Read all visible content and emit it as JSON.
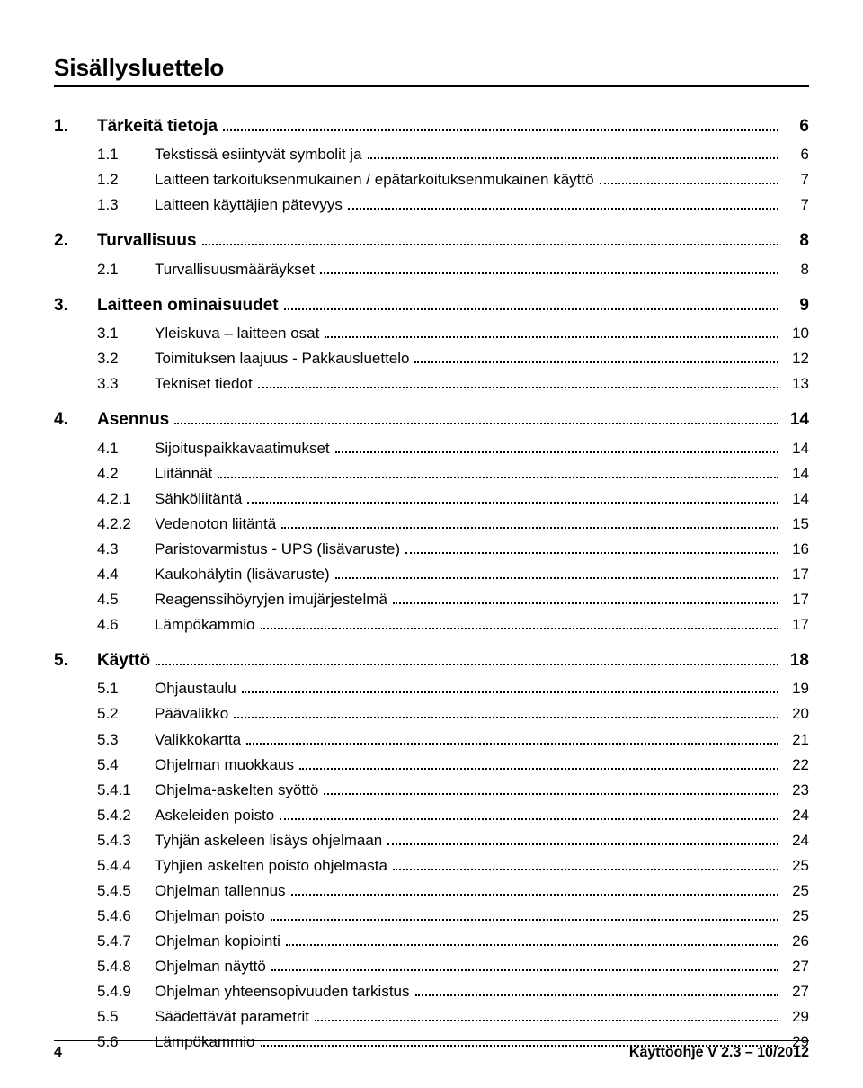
{
  "title": "Sisällysluettelo",
  "footer": {
    "page_number": "4",
    "doc_version": "Käyttöohje V 2.3 – 10/2012"
  },
  "colors": {
    "text": "#000000",
    "background": "#ffffff",
    "rule": "#000000",
    "leader": "#000000"
  },
  "typography": {
    "title_fontsize_pt": 20,
    "section_fontsize_pt": 14,
    "entry_fontsize_pt": 13,
    "footer_fontsize_pt": 12,
    "font_family": "Arial"
  },
  "toc": [
    {
      "num": "1.",
      "title": "Tärkeitä tietoja",
      "page": "6",
      "children": [
        {
          "num": "1.1",
          "title": "Tekstissä esiintyvät symbolit ja",
          "page": "6"
        },
        {
          "num": "1.2",
          "title": "Laitteen tarkoituksenmukainen / epätarkoituksenmukainen käyttö",
          "page": "7"
        },
        {
          "num": "1.3",
          "title": "Laitteen käyttäjien pätevyys",
          "page": "7"
        }
      ]
    },
    {
      "num": "2.",
      "title": "Turvallisuus",
      "page": "8",
      "children": [
        {
          "num": "2.1",
          "title": "Turvallisuusmääräykset",
          "page": "8"
        }
      ]
    },
    {
      "num": "3.",
      "title": "Laitteen ominaisuudet",
      "page": "9",
      "children": [
        {
          "num": "3.1",
          "title": "Yleiskuva – laitteen osat",
          "page": "10"
        },
        {
          "num": "3.2",
          "title": "Toimituksen laajuus - Pakkausluettelo",
          "page": "12"
        },
        {
          "num": "3.3",
          "title": "Tekniset tiedot",
          "page": "13"
        }
      ]
    },
    {
      "num": "4.",
      "title": "Asennus",
      "page": "14",
      "children": [
        {
          "num": "4.1",
          "title": "Sijoituspaikkavaatimukset",
          "page": "14"
        },
        {
          "num": "4.2",
          "title": "Liitännät",
          "page": "14",
          "children": [
            {
              "num": "4.2.1",
              "title": "Sähköliitäntä",
              "page": "14"
            },
            {
              "num": "4.2.2",
              "title": "Vedenoton liitäntä",
              "page": "15"
            }
          ]
        },
        {
          "num": "4.3",
          "title": "Paristovarmistus - UPS (lisävaruste)",
          "page": "16"
        },
        {
          "num": "4.4",
          "title": "Kaukohälytin (lisävaruste)",
          "page": "17"
        },
        {
          "num": "4.5",
          "title": "Reagenssihöyryjen imujärjestelmä",
          "page": "17"
        },
        {
          "num": "4.6",
          "title": "Lämpökammio",
          "page": "17"
        }
      ]
    },
    {
      "num": "5.",
      "title": "Käyttö",
      "page": "18",
      "children": [
        {
          "num": "5.1",
          "title": "Ohjaustaulu",
          "page": "19"
        },
        {
          "num": "5.2",
          "title": "Päävalikko",
          "page": "20"
        },
        {
          "num": "5.3",
          "title": "Valikkokartta",
          "page": "21"
        },
        {
          "num": "5.4",
          "title": "Ohjelman muokkaus",
          "page": "22",
          "children": [
            {
              "num": "5.4.1",
              "title": "Ohjelma-askelten syöttö",
              "page": "23"
            },
            {
              "num": "5.4.2",
              "title": "Askeleiden poisto",
              "page": "24"
            },
            {
              "num": "5.4.3",
              "title": "Tyhjän askeleen lisäys ohjelmaan",
              "page": "24"
            },
            {
              "num": "5.4.4",
              "title": "Tyhjien askelten poisto ohjelmasta",
              "page": "25"
            },
            {
              "num": "5.4.5",
              "title": "Ohjelman tallennus",
              "page": "25"
            },
            {
              "num": "5.4.6",
              "title": "Ohjelman poisto",
              "page": "25"
            },
            {
              "num": "5.4.7",
              "title": "Ohjelman kopiointi",
              "page": "26"
            },
            {
              "num": "5.4.8",
              "title": "Ohjelman näyttö",
              "page": "27"
            },
            {
              "num": "5.4.9",
              "title": "Ohjelman yhteensopivuuden tarkistus",
              "page": "27"
            }
          ]
        },
        {
          "num": "5.5",
          "title": "Säädettävät parametrit",
          "page": "29"
        },
        {
          "num": "5.6",
          "title": "Lämpökammio",
          "page": "29"
        }
      ]
    }
  ]
}
